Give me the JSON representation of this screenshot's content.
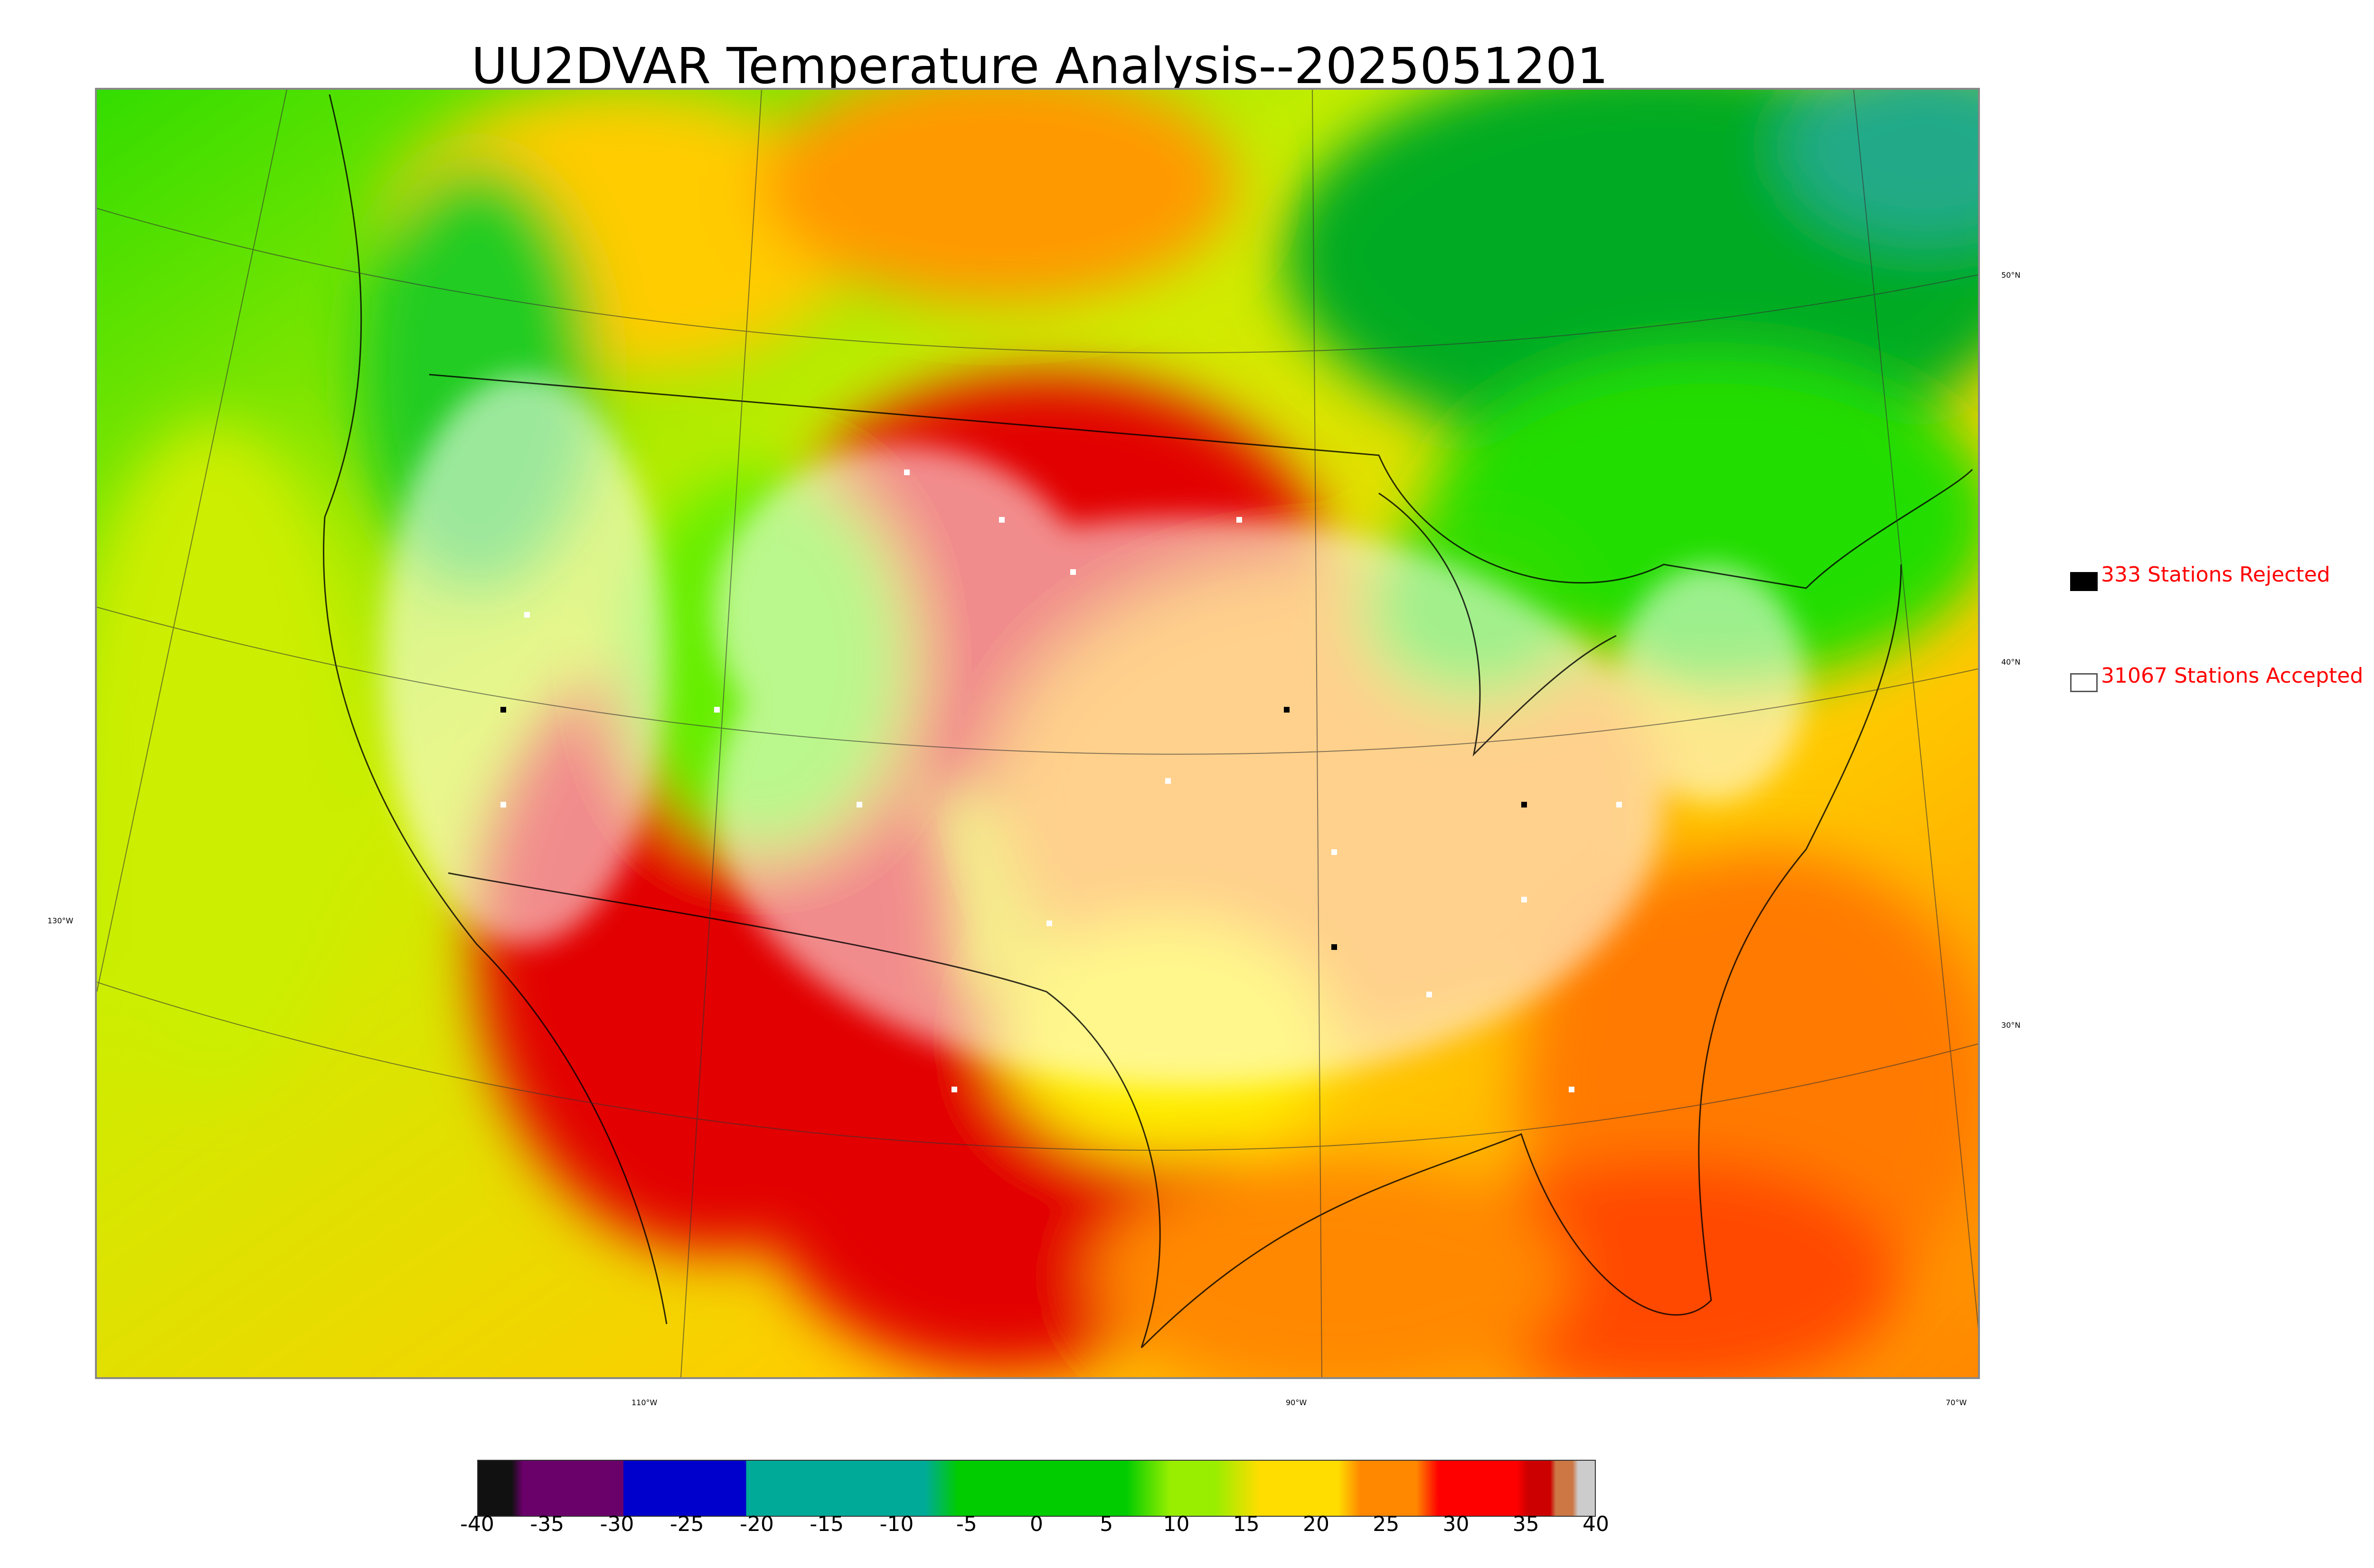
{
  "title": "UU2DVAR Temperature Analysis--2025051201",
  "legend": {
    "rejected": {
      "label": "333 Stations Rejected",
      "color": "#000000"
    },
    "accepted": {
      "label": "31067 Stations Accepted",
      "color": "#ffffff"
    }
  },
  "axes": {
    "lat_labels": [
      "50°N",
      "40°N",
      "30°N"
    ],
    "lon_labels": [
      "130°W",
      "110°W",
      "90°W",
      "70°W"
    ]
  },
  "colorbar": {
    "ticks": [
      "-40",
      "-35",
      "-30",
      "-25",
      "-20",
      "-15",
      "-10",
      "-5",
      "0",
      "5",
      "10",
      "15",
      "20",
      "25",
      "30",
      "35",
      "40"
    ],
    "colors": [
      "#111111",
      "#6a006a",
      "#0000cc",
      "#00aa99",
      "#00cc00",
      "#99ee00",
      "#ffdd00",
      "#ff8800",
      "#ff0000",
      "#cc0000",
      "#cc7744",
      "#cccccc"
    ]
  },
  "colors": {
    "hot": "#e20000",
    "warm": "#ff9900",
    "mild": "#e6ee00",
    "cool": "#33dd00",
    "cold": "#00aa22",
    "ocean_east": "#ff7a00"
  }
}
